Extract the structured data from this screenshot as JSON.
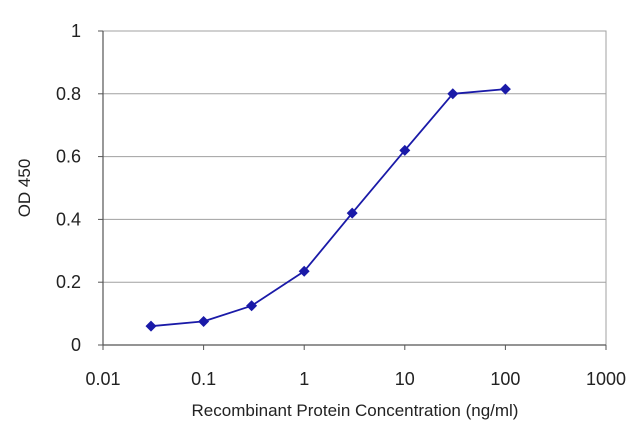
{
  "chart_data": {
    "type": "line",
    "title": "",
    "xlabel": "Recombinant Protein Concentration (ng/ml)",
    "ylabel": "OD 450",
    "xscale": "log",
    "xlim": [
      0.01,
      1000
    ],
    "ylim": [
      0,
      1
    ],
    "xticks": [
      {
        "value": 0.01,
        "label": "0.01"
      },
      {
        "value": 0.1,
        "label": "0.1"
      },
      {
        "value": 1,
        "label": "1"
      },
      {
        "value": 10,
        "label": "10"
      },
      {
        "value": 100,
        "label": "100"
      },
      {
        "value": 1000,
        "label": "1000"
      }
    ],
    "yticks": [
      {
        "value": 0,
        "label": "0"
      },
      {
        "value": 0.2,
        "label": "0.2"
      },
      {
        "value": 0.4,
        "label": "0.4"
      },
      {
        "value": 0.6,
        "label": "0.6"
      },
      {
        "value": 0.8,
        "label": "0.8"
      },
      {
        "value": 1,
        "label": "1"
      }
    ],
    "grid": "horizontal",
    "legend": "none",
    "series": [
      {
        "color": "#1a1aa8",
        "points": [
          {
            "x": 0.03,
            "y": 0.06
          },
          {
            "x": 0.1,
            "y": 0.075
          },
          {
            "x": 0.3,
            "y": 0.125
          },
          {
            "x": 1,
            "y": 0.235
          },
          {
            "x": 3,
            "y": 0.42
          },
          {
            "x": 10,
            "y": 0.62
          },
          {
            "x": 30,
            "y": 0.8
          },
          {
            "x": 100,
            "y": 0.815
          }
        ]
      }
    ]
  },
  "colors": {
    "plot_background": "#ffffff",
    "grid": "#a0a0a0",
    "frame": "#a0a0a0",
    "line": "#1a1aa8"
  }
}
